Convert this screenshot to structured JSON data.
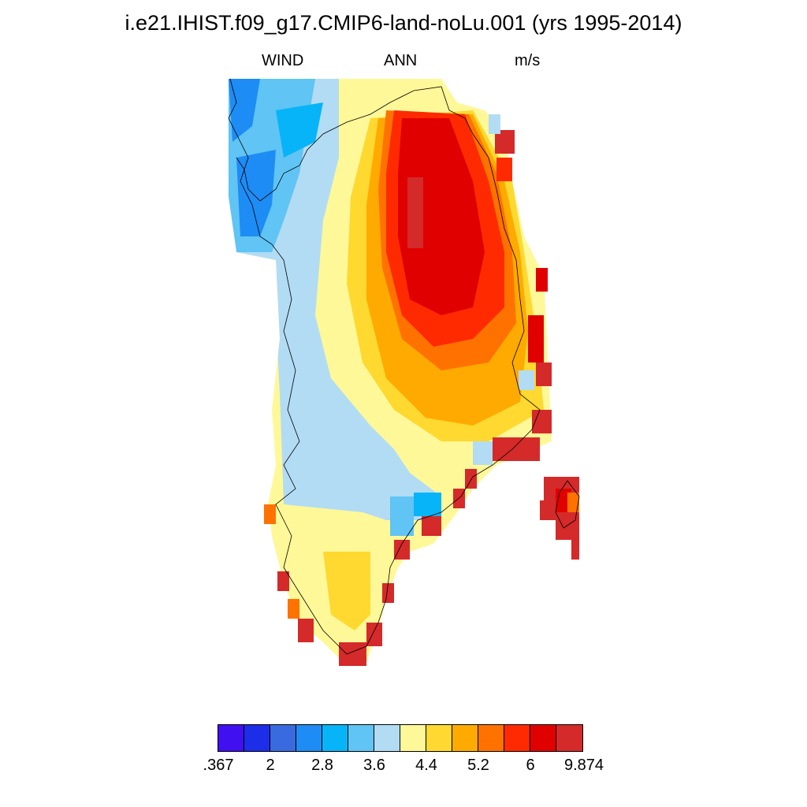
{
  "title": "i.e21.IHIST.f09_g17.CMIP6-land-noLu.001 (yrs 1995-2014)",
  "subtitle": {
    "left": "WIND",
    "center": "ANN",
    "right": "m/s"
  },
  "colorbar": {
    "colors": [
      "#4010f0",
      "#1c2ee8",
      "#3a6ae0",
      "#1e8cf5",
      "#08b4f8",
      "#60c4f4",
      "#b2dcf4",
      "#fff898",
      "#ffd830",
      "#ffaa00",
      "#ff7200",
      "#ff2a00",
      "#e00000",
      "#d42a2a"
    ],
    "labels": [
      ".367",
      "2",
      "2.8",
      "3.6",
      "4.4",
      "5.2",
      "6",
      "9.874"
    ]
  },
  "chart_data": {
    "type": "heatmap",
    "title": "i.e21.IHIST.f09_g17.CMIP6-land-noLu.001 (yrs 1995-2014)",
    "variable": "WIND",
    "period": "ANN",
    "units": "m/s",
    "levels": [
      ".367",
      "2",
      "2.8",
      "3.6",
      "4.4",
      "5.2",
      "6",
      "9.874"
    ],
    "pattern": "Greenland annual mean wind speed; highest (red) over the northern-central ice sheet interior and isolated coastal cells on the east and south coasts; lowest (blue) along the northwest coast; light blue and yellow along the western margin and southern tip"
  }
}
